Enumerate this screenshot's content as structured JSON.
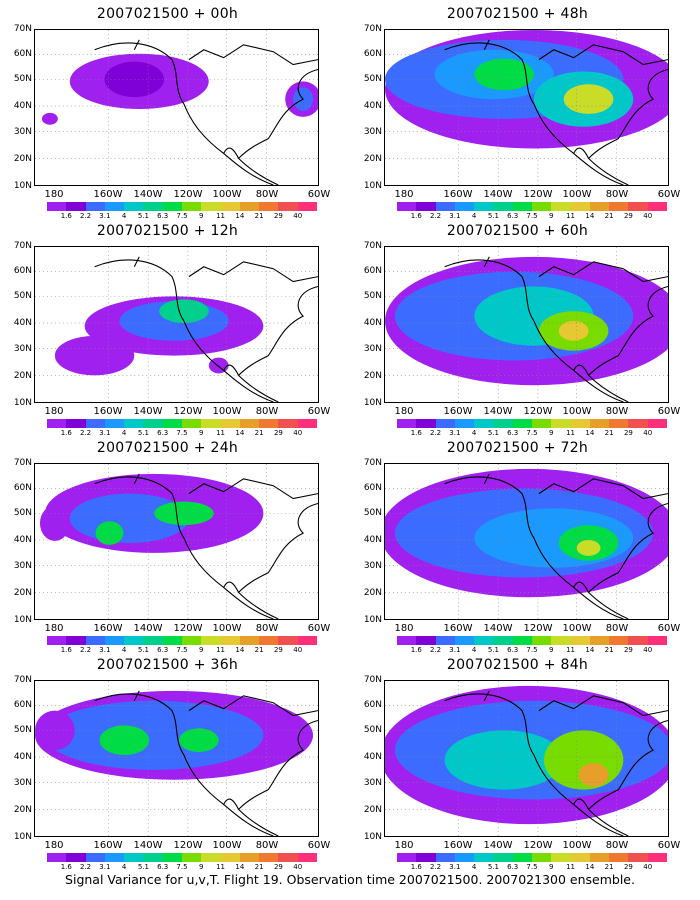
{
  "caption": "Signal Variance for u,v,T. Flight 19. Observation time 2007021500. 2007021300 ensemble.",
  "lat_labels": [
    "70N",
    "60N",
    "50N",
    "40N",
    "30N",
    "20N",
    "10N"
  ],
  "lon_labels": [
    "180",
    "160W",
    "140W",
    "120W",
    "100W",
    "80W",
    "60W"
  ],
  "colorbar": {
    "colors": [
      "#a020f0",
      "#8000d8",
      "#3c6cff",
      "#1a9aff",
      "#00c8c8",
      "#00d08c",
      "#00dc46",
      "#78dc00",
      "#c8dc28",
      "#e6c832",
      "#e6a02a",
      "#f07830",
      "#f05050",
      "#ff2f7a"
    ],
    "labels": [
      "1.6",
      "2.2",
      "3.1",
      "4",
      "5.1",
      "6.3",
      "7.5",
      "9",
      "11",
      "14",
      "21",
      "29",
      "40"
    ]
  },
  "panels": [
    {
      "title": "2007021500 + 00h",
      "id": "p00"
    },
    {
      "title": "2007021500 + 48h",
      "id": "p48"
    },
    {
      "title": "2007021500 + 12h",
      "id": "p12"
    },
    {
      "title": "2007021500 + 60h",
      "id": "p60"
    },
    {
      "title": "2007021500 + 24h",
      "id": "p24"
    },
    {
      "title": "2007021500 + 72h",
      "id": "p72"
    },
    {
      "title": "2007021500 + 36h",
      "id": "p36"
    },
    {
      "title": "2007021500 + 84h",
      "id": "p84"
    }
  ]
}
